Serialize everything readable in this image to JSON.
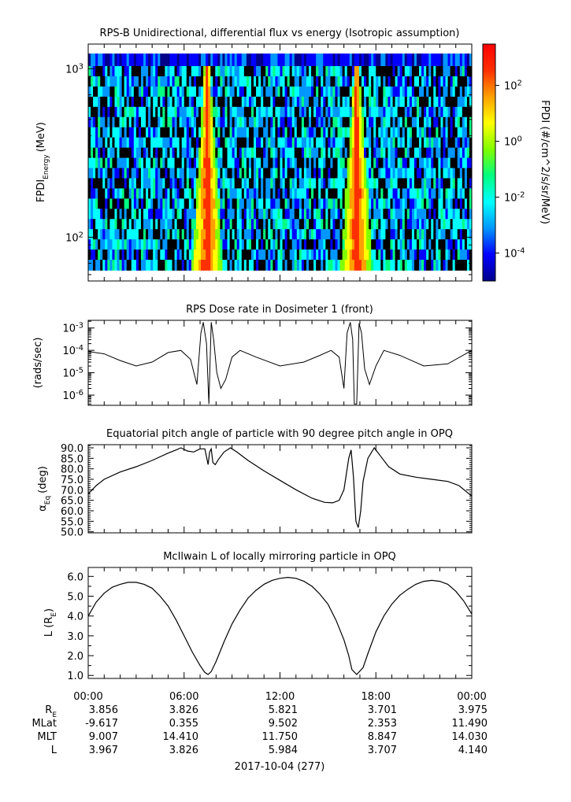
{
  "chart_data": [
    {
      "type": "heatmap",
      "title": "RPS-B  Unidirectional, differential flux vs energy (Isotropic assumption)",
      "ylabel_main": "FPDI",
      "ylabel_sub": "Energy",
      "ylabel_unit": "(MeV)",
      "y_scale": "log",
      "ylim": [
        55,
        1400
      ],
      "yticks": [
        {
          "base": "10",
          "exp": "2",
          "value": 100
        },
        {
          "base": "10",
          "exp": "3",
          "value": 1000
        }
      ],
      "x_hours": [
        0,
        24
      ],
      "n_energy_channels": 20,
      "features": [
        {
          "description": "high flux V-shaped band",
          "center_hour": 7.45,
          "spread_hours": 0.8
        },
        {
          "description": "high flux V-shaped band",
          "center_hour": 16.8,
          "spread_hours": 0.8
        }
      ],
      "colorbar": {
        "label": "FPDI (#/cm^2/s/sr/MeV)",
        "scale": "log",
        "range": [
          1e-05,
          3000
        ],
        "ticks": [
          {
            "base": "10",
            "exp": "2",
            "value": 100
          },
          {
            "base": "10",
            "exp": "0",
            "value": 1
          },
          {
            "base": "10",
            "exp": "-2",
            "value": 0.01
          },
          {
            "base": "10",
            "exp": "-4",
            "value": 0.0001
          }
        ],
        "colors": [
          "#00008b",
          "#0000ff",
          "#0096ff",
          "#00ffff",
          "#00ff80",
          "#80ff00",
          "#ffff00",
          "#ffa000",
          "#ff3000",
          "#ff0000"
        ]
      }
    },
    {
      "type": "line",
      "title": "RPS  Dose rate in Dosimeter 1 (front)",
      "ylabel": "(rads/sec)",
      "y_scale": "log",
      "ylim": [
        3.5e-07,
        0.0022
      ],
      "yticks": [
        {
          "base": "10",
          "exp": "-3",
          "value": 0.001
        },
        {
          "base": "10",
          "exp": "-4",
          "value": 0.0001
        },
        {
          "base": "10",
          "exp": "-5",
          "value": 1e-05
        },
        {
          "base": "10",
          "exp": "-6",
          "value": 1e-06
        }
      ],
      "x": [
        0,
        1,
        2,
        3,
        4,
        5,
        5.8,
        6.4,
        6.8,
        7.05,
        7.2,
        7.4,
        7.55,
        7.7,
        7.85,
        8.05,
        8.3,
        8.6,
        9.0,
        9.5,
        10.5,
        12,
        13.5,
        14.5,
        15.2,
        15.7,
        16.0,
        16.2,
        16.4,
        16.55,
        16.65,
        16.8,
        16.95,
        17.1,
        17.3,
        17.6,
        18.0,
        18.5,
        19.5,
        21,
        22.5,
        24
      ],
      "y": [
        9e-05,
        7e-05,
        3.5e-05,
        2e-05,
        3e-05,
        8e-05,
        0.0001,
        4e-05,
        3e-06,
        0.0006,
        0.0018,
        0.0002,
        4e-07,
        0.0018,
        0.0003,
        1e-05,
        2e-06,
        5e-06,
        5e-05,
        0.0001,
        5e-05,
        2e-05,
        3e-05,
        6e-05,
        0.0001,
        5e-05,
        2e-06,
        0.0006,
        0.0018,
        0.0003,
        4e-07,
        4e-07,
        0.0016,
        0.0006,
        1.5e-05,
        3e-06,
        2e-05,
        0.0001,
        6e-05,
        2e-05,
        2.5e-05,
        0.0001
      ]
    },
    {
      "type": "line",
      "title": "Equatorial pitch angle of particle with 90 degree pitch angle in OPQ",
      "ylabel_main": "α",
      "ylabel_sub": "Eq",
      "ylabel_unit": "(deg)",
      "ylim": [
        49.5,
        91.5
      ],
      "yticks": [
        50,
        55,
        60,
        65,
        70,
        75,
        80,
        85,
        90
      ],
      "x": [
        0,
        0.5,
        1,
        2,
        3,
        4,
        5,
        5.5,
        5.8,
        6.2,
        6.6,
        7.0,
        7.3,
        7.5,
        7.6,
        7.7,
        7.8,
        7.95,
        8.15,
        8.5,
        8.9,
        9.3,
        10,
        11,
        12,
        13,
        14,
        14.8,
        15.3,
        15.7,
        16.0,
        16.3,
        16.45,
        16.6,
        16.75,
        16.9,
        17.05,
        17.2,
        17.5,
        17.9,
        18.3,
        18.8,
        19.5,
        20.5,
        21.5,
        22.5,
        23.2,
        24
      ],
      "y": [
        68,
        72,
        75,
        78.5,
        81,
        84,
        87.5,
        89,
        90,
        88.5,
        88,
        89.5,
        89.5,
        82,
        88,
        89.5,
        83,
        82,
        84.5,
        88,
        90,
        88,
        84,
        79,
        74.5,
        70,
        66,
        64,
        63.8,
        65,
        70,
        85,
        89,
        76,
        55,
        52,
        60,
        74,
        85,
        90,
        86,
        81,
        77.5,
        76,
        75,
        74,
        72,
        67
      ]
    },
    {
      "type": "line",
      "title": "McIlwain L of locally mirroring particle in OPQ",
      "ylabel_main": "L (R",
      "ylabel_sub": "E",
      "ylabel_unit": ")",
      "ylim": [
        0.85,
        6.45
      ],
      "yticks": [
        1,
        2,
        3,
        4,
        5,
        6
      ],
      "x": [
        0,
        0.5,
        1,
        1.5,
        2,
        2.5,
        3,
        3.5,
        4,
        4.5,
        5,
        5.5,
        6,
        6.5,
        7,
        7.3,
        7.5,
        7.7,
        8,
        8.5,
        9,
        9.5,
        10,
        10.5,
        11,
        11.5,
        12,
        12.5,
        13,
        13.5,
        14,
        14.5,
        15,
        15.5,
        16,
        16.3,
        16.5,
        16.8,
        17.2,
        17.5,
        18,
        18.5,
        19,
        19.5,
        20,
        20.5,
        21,
        21.5,
        22,
        22.5,
        23,
        23.5,
        24
      ],
      "y": [
        4.0,
        4.7,
        5.15,
        5.45,
        5.6,
        5.7,
        5.7,
        5.6,
        5.4,
        5.0,
        4.5,
        3.8,
        3.0,
        2.2,
        1.5,
        1.15,
        1.05,
        1.2,
        1.7,
        2.7,
        3.6,
        4.3,
        4.9,
        5.3,
        5.6,
        5.8,
        5.9,
        5.95,
        5.9,
        5.75,
        5.5,
        5.1,
        4.6,
        3.8,
        2.8,
        2.0,
        1.3,
        1.05,
        1.4,
        2.1,
        3.2,
        4.0,
        4.6,
        5.05,
        5.35,
        5.6,
        5.75,
        5.8,
        5.75,
        5.6,
        5.25,
        4.75,
        4.1
      ]
    }
  ],
  "xaxis": {
    "tick_labels": [
      "00:00",
      "06:00",
      "12:00",
      "18:00",
      "00:00"
    ],
    "hours": [
      0,
      6,
      12,
      18,
      24
    ],
    "ephemeris": [
      {
        "label": "R",
        "label_sub": "E",
        "values": [
          "3.856",
          "3.826",
          "5.821",
          "3.701",
          "3.975"
        ]
      },
      {
        "label": "MLat",
        "label_sub": "",
        "values": [
          "-9.617",
          "0.355",
          "9.502",
          "2.353",
          "11.490"
        ]
      },
      {
        "label": "MLT",
        "label_sub": "",
        "values": [
          "9.007",
          "14.410",
          "11.750",
          "8.847",
          "14.030"
        ]
      },
      {
        "label": "L",
        "label_sub": "",
        "values": [
          "3.967",
          "3.826",
          "5.984",
          "3.707",
          "4.140"
        ]
      }
    ],
    "date_label": "2017-10-04 (277)"
  }
}
